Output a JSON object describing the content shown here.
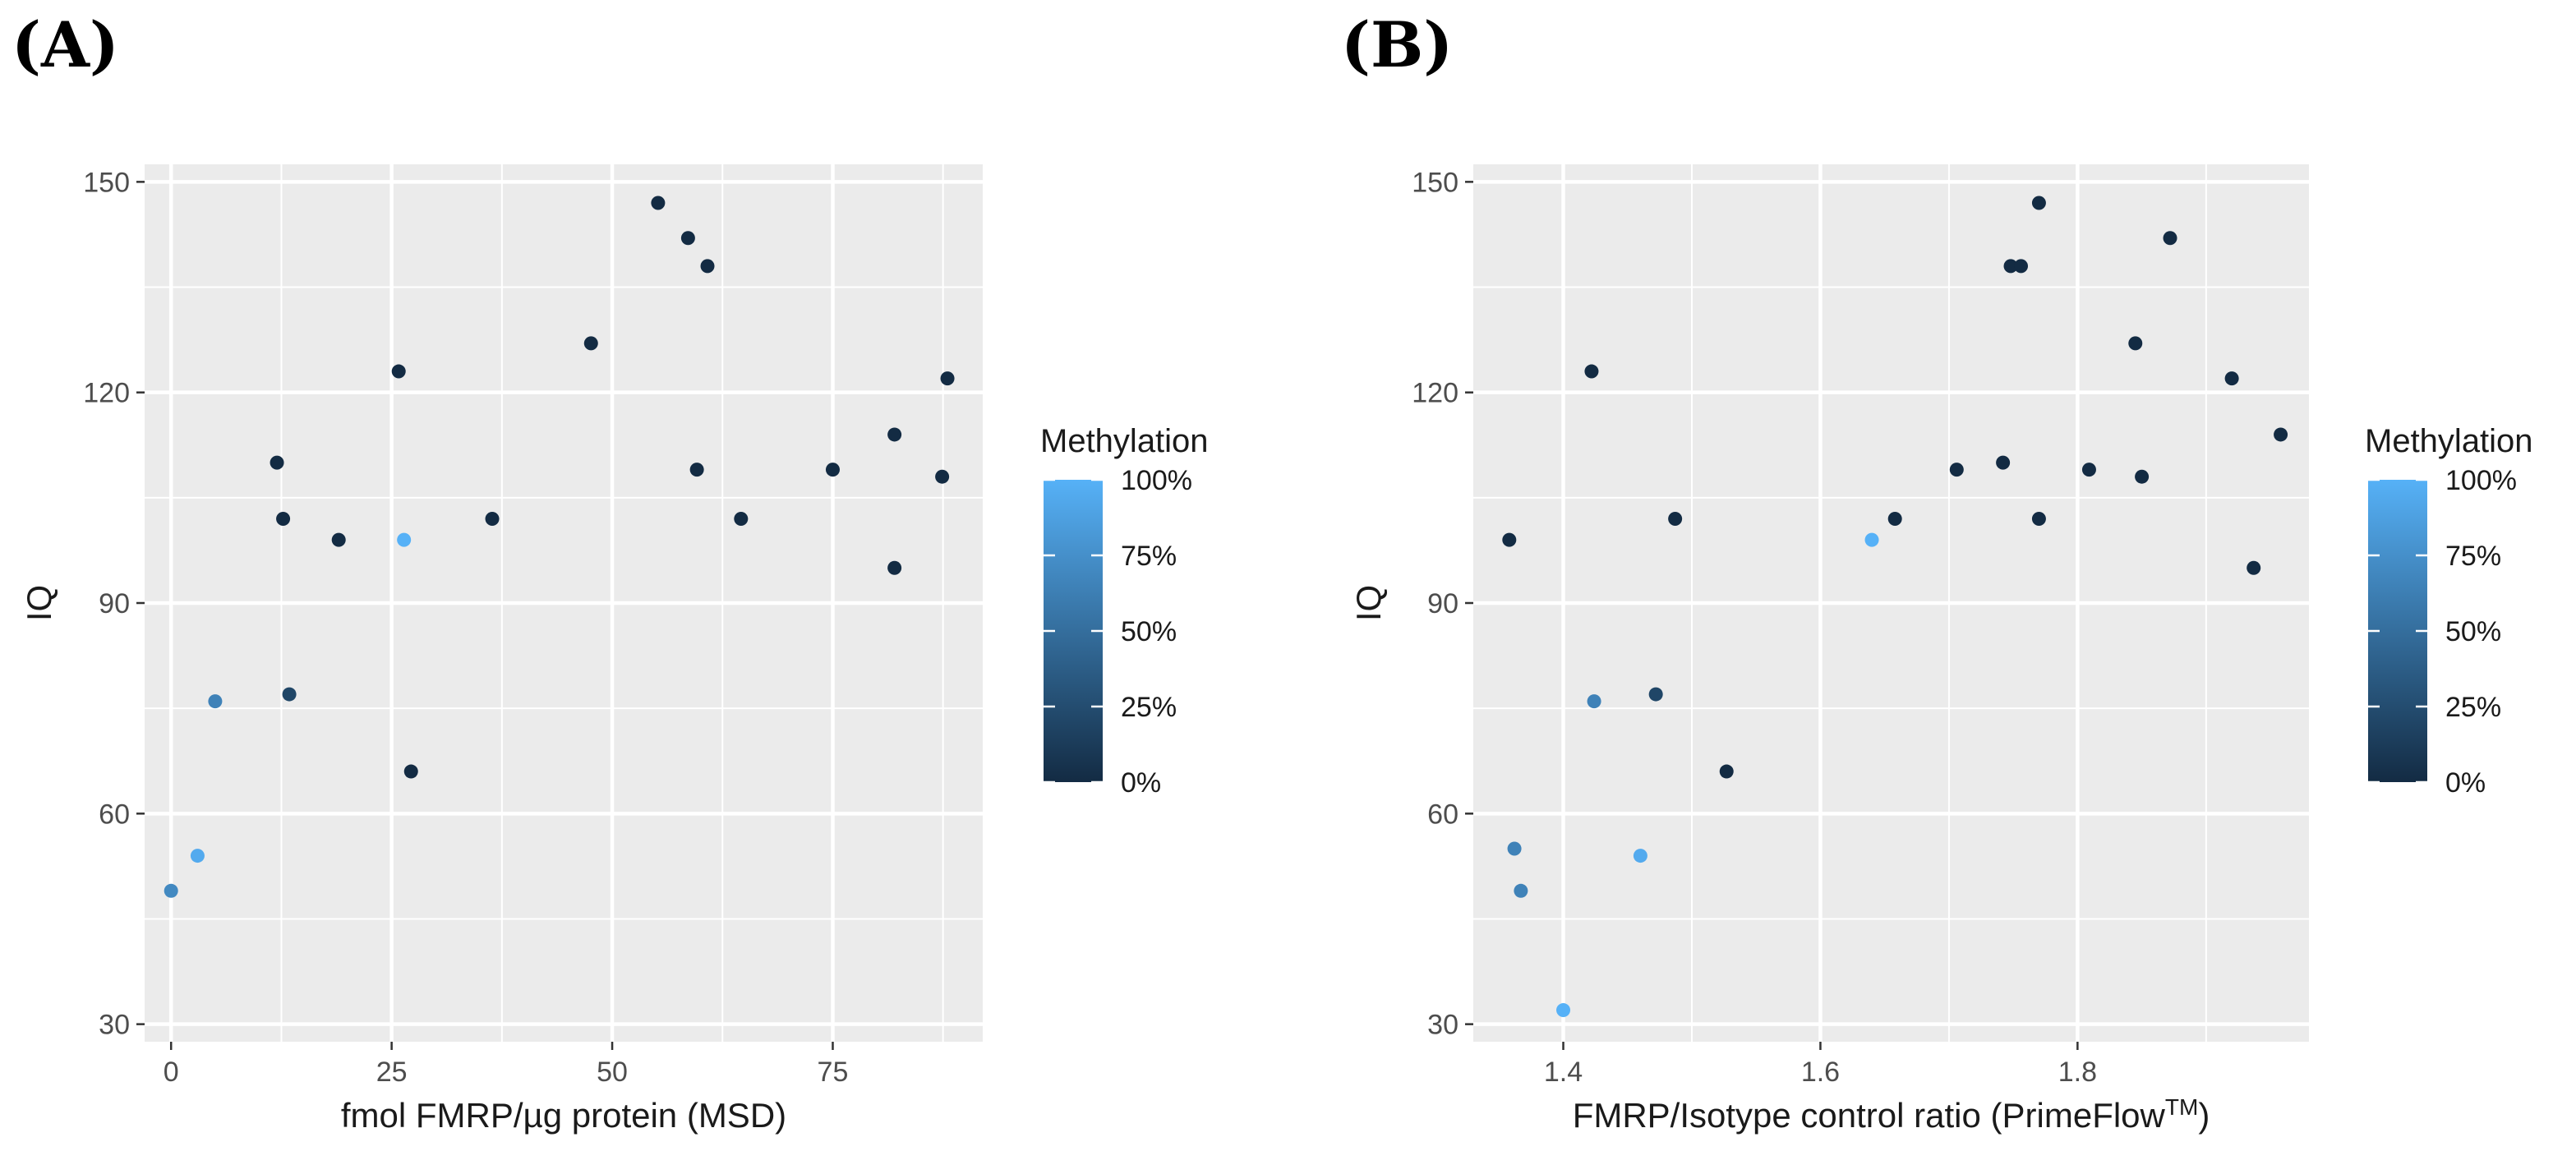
{
  "chart_data": [
    {
      "panel_label": "(A)",
      "type": "scatter",
      "xlabel": "fmol FMRP/µg protein (MSD)",
      "ylabel": "IQ",
      "xlim": [
        -3,
        92
      ],
      "ylim": [
        27.5,
        152.5
      ],
      "x_ticks": [
        0,
        25,
        50,
        75
      ],
      "x_tick_labels": [
        "0",
        "25",
        "50",
        "75"
      ],
      "y_ticks": [
        30,
        60,
        90,
        120,
        150
      ],
      "y_tick_labels": [
        "30",
        "60",
        "90",
        "120",
        "150"
      ],
      "grid": true,
      "legend": {
        "title": "Methylation",
        "placement": "right",
        "ticks": [
          100,
          75,
          50,
          25,
          0
        ],
        "tick_labels": [
          "100%",
          "75%",
          "50%",
          "25%",
          "0%"
        ]
      },
      "points": [
        {
          "x": 0,
          "y": 49,
          "methylation": 70
        },
        {
          "x": 3,
          "y": 54,
          "methylation": 95
        },
        {
          "x": 5,
          "y": 76,
          "methylation": 65
        },
        {
          "x": 12,
          "y": 110,
          "methylation": 0
        },
        {
          "x": 12.7,
          "y": 102,
          "methylation": 0
        },
        {
          "x": 13.4,
          "y": 77,
          "methylation": 20
        },
        {
          "x": 19,
          "y": 99,
          "methylation": 0
        },
        {
          "x": 25.8,
          "y": 123,
          "methylation": 0
        },
        {
          "x": 26.4,
          "y": 99,
          "methylation": 100
        },
        {
          "x": 27.2,
          "y": 66,
          "methylation": 0
        },
        {
          "x": 36.4,
          "y": 102,
          "methylation": 0
        },
        {
          "x": 47.6,
          "y": 127,
          "methylation": 0
        },
        {
          "x": 55.2,
          "y": 147,
          "methylation": 0
        },
        {
          "x": 58.6,
          "y": 142,
          "methylation": 0
        },
        {
          "x": 59.6,
          "y": 109,
          "methylation": 0
        },
        {
          "x": 60.8,
          "y": 138,
          "methylation": 0
        },
        {
          "x": 64.6,
          "y": 102,
          "methylation": 0
        },
        {
          "x": 75,
          "y": 109,
          "methylation": 0
        },
        {
          "x": 82,
          "y": 114,
          "methylation": 0
        },
        {
          "x": 82,
          "y": 95,
          "methylation": 0
        },
        {
          "x": 87.4,
          "y": 108,
          "methylation": 0
        },
        {
          "x": 88,
          "y": 122,
          "methylation": 0
        }
      ]
    },
    {
      "panel_label": "(B)",
      "type": "scatter",
      "xlabel": "FMRP/Isotype control ratio (PrimeFlow",
      "xlabel_superscript": "TM",
      "xlabel_close": ")",
      "ylabel": "IQ",
      "xlim": [
        1.33,
        1.98
      ],
      "ylim": [
        27.5,
        152.5
      ],
      "x_ticks": [
        1.4,
        1.6,
        1.8
      ],
      "x_tick_labels": [
        "1.4",
        "1.6",
        "1.8"
      ],
      "y_ticks": [
        30,
        60,
        90,
        120,
        150
      ],
      "y_tick_labels": [
        "30",
        "60",
        "90",
        "120",
        "150"
      ],
      "grid": true,
      "legend": {
        "title": "Methylation",
        "placement": "right",
        "ticks": [
          100,
          75,
          50,
          25,
          0
        ],
        "tick_labels": [
          "100%",
          "75%",
          "50%",
          "25%",
          "0%"
        ]
      },
      "points": [
        {
          "x": 1.358,
          "y": 99,
          "methylation": 0
        },
        {
          "x": 1.362,
          "y": 55,
          "methylation": 65
        },
        {
          "x": 1.367,
          "y": 49,
          "methylation": 65
        },
        {
          "x": 1.4,
          "y": 32,
          "methylation": 100
        },
        {
          "x": 1.422,
          "y": 123,
          "methylation": 0
        },
        {
          "x": 1.424,
          "y": 76,
          "methylation": 65
        },
        {
          "x": 1.46,
          "y": 54,
          "methylation": 95
        },
        {
          "x": 1.472,
          "y": 77,
          "methylation": 20
        },
        {
          "x": 1.487,
          "y": 102,
          "methylation": 0
        },
        {
          "x": 1.527,
          "y": 66,
          "methylation": 0
        },
        {
          "x": 1.64,
          "y": 99,
          "methylation": 100
        },
        {
          "x": 1.658,
          "y": 102,
          "methylation": 0
        },
        {
          "x": 1.706,
          "y": 109,
          "methylation": 0
        },
        {
          "x": 1.742,
          "y": 110,
          "methylation": 0
        },
        {
          "x": 1.748,
          "y": 138,
          "methylation": 0
        },
        {
          "x": 1.756,
          "y": 138,
          "methylation": 0
        },
        {
          "x": 1.77,
          "y": 147,
          "methylation": 0
        },
        {
          "x": 1.77,
          "y": 102,
          "methylation": 0
        },
        {
          "x": 1.809,
          "y": 109,
          "methylation": 0
        },
        {
          "x": 1.845,
          "y": 127,
          "methylation": 0
        },
        {
          "x": 1.85,
          "y": 108,
          "methylation": 0
        },
        {
          "x": 1.872,
          "y": 142,
          "methylation": 0
        },
        {
          "x": 1.92,
          "y": 122,
          "methylation": 0
        },
        {
          "x": 1.937,
          "y": 95,
          "methylation": 0
        },
        {
          "x": 1.958,
          "y": 114,
          "methylation": 0
        }
      ]
    }
  ],
  "colors": {
    "panel_bg": "#ebebeb",
    "grid": "#ffffff",
    "low": "#132b43",
    "high": "#56b1f7"
  }
}
